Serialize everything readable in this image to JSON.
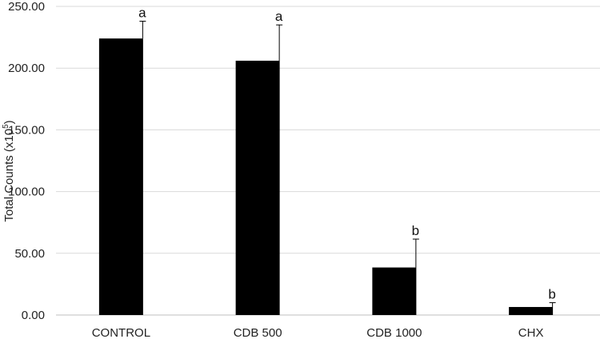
{
  "chart_data": {
    "type": "bar",
    "categories": [
      "CONTROL",
      "CDB 500",
      "CDB 1000",
      "CHX"
    ],
    "values": [
      224,
      206,
      38.5,
      6.5
    ],
    "errors": [
      14,
      29,
      23,
      3.5
    ],
    "significance": [
      "a",
      "a",
      "b",
      "b"
    ],
    "ylabel": {
      "main": "Total Counts (x10",
      "sup": "5",
      "close": ")"
    },
    "ylim": [
      0,
      250
    ],
    "ytick_values": [
      0,
      50,
      100,
      150,
      200,
      250
    ],
    "ytick_labels": [
      "0.00",
      "50.00",
      "100.00",
      "150.00",
      "200.00",
      "250.00"
    ],
    "grid": true,
    "bar_color": "#000000",
    "grid_color": "#d9d9d9"
  }
}
